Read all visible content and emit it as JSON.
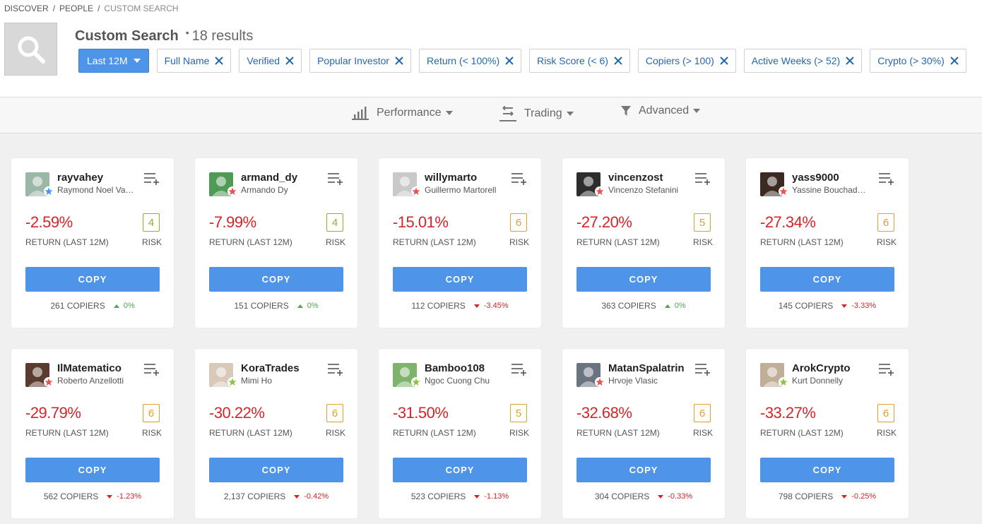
{
  "breadcrumb": {
    "items": [
      "DISCOVER",
      "PEOPLE"
    ],
    "current": "CUSTOM SEARCH"
  },
  "page": {
    "title": "Custom Search",
    "results": "18 results"
  },
  "filters": {
    "period": "Last 12M",
    "chips": [
      "Full Name",
      "Verified",
      "Popular Investor",
      "Return (< 100%)",
      "Risk Score (< 6)",
      "Copiers (> 100)",
      "Active Weeks (> 52)",
      "Crypto (> 30%)"
    ]
  },
  "toolbar": {
    "performance": "Performance",
    "trading": "Trading",
    "advanced": "Advanced"
  },
  "colors": {
    "accent": "#4e95ea",
    "negative": "#d8232a",
    "positive": "#4aa84f",
    "risk_border": "#c6b534"
  },
  "labels": {
    "return": "RETURN (LAST 12M)",
    "risk": "RISK",
    "copy": "COPY"
  },
  "traders": [
    {
      "username": "rayvahey",
      "fullname": "Raymond Noel Vahey",
      "return": "-2.59%",
      "risk": "4",
      "copiers": "261 COPIERS",
      "change": "0%",
      "trend": "up",
      "badge": "blue",
      "avatar_bg": "#9bb7a6",
      "risk_color": "#8fb321"
    },
    {
      "username": "armand_dy",
      "fullname": "Armando Dy",
      "return": "-7.99%",
      "risk": "4",
      "copiers": "151 COPIERS",
      "change": "0%",
      "trend": "up",
      "badge": "red",
      "avatar_bg": "#4f9a54",
      "risk_color": "#8fb321"
    },
    {
      "username": "willymarto",
      "fullname": "Guillermo Martorell",
      "return": "-15.01%",
      "risk": "6",
      "copiers": "112 COPIERS",
      "change": "-3.45%",
      "trend": "down",
      "badge": "red",
      "avatar_bg": "#c9c9c9",
      "risk_color": "#e3a02c"
    },
    {
      "username": "vincenzost",
      "fullname": "Vincenzo Stefanini",
      "return": "-27.20%",
      "risk": "5",
      "copiers": "363 COPIERS",
      "change": "0%",
      "trend": "up",
      "badge": "red",
      "avatar_bg": "#2d2d2d",
      "risk_color": "#d2a72b"
    },
    {
      "username": "yass9000",
      "fullname": "Yassine Bouchadekh",
      "return": "-27.34%",
      "risk": "6",
      "copiers": "145 COPIERS",
      "change": "-3.33%",
      "trend": "down",
      "badge": "red",
      "avatar_bg": "#3a2a22",
      "risk_color": "#e3a02c"
    },
    {
      "username": "IlMatematico",
      "fullname": "Roberto Anzellotti",
      "return": "-29.79%",
      "risk": "6",
      "copiers": "562 COPIERS",
      "change": "-1.23%",
      "trend": "down",
      "badge": "red",
      "avatar_bg": "#5b3b2e",
      "risk_color": "#e3a02c"
    },
    {
      "username": "KoraTrades",
      "fullname": "Mimi Ho",
      "return": "-30.22%",
      "risk": "6",
      "copiers": "2,137 COPIERS",
      "change": "-0.42%",
      "trend": "down",
      "badge": "green",
      "avatar_bg": "#d8c9b8",
      "risk_color": "#e3a02c"
    },
    {
      "username": "Bamboo108",
      "fullname": "Ngoc Cuong Chu",
      "return": "-31.50%",
      "risk": "5",
      "copiers": "523 COPIERS",
      "change": "-1.13%",
      "trend": "down",
      "badge": "green",
      "avatar_bg": "#7fb36b",
      "risk_color": "#d2a72b"
    },
    {
      "username": "MatanSpalatrin",
      "fullname": "Hrvoje Vlasic",
      "return": "-32.68%",
      "risk": "6",
      "copiers": "304 COPIERS",
      "change": "-0.33%",
      "trend": "down",
      "badge": "red",
      "avatar_bg": "#6a7480",
      "risk_color": "#e3a02c"
    },
    {
      "username": "ArokCrypto",
      "fullname": "Kurt Donnelly",
      "return": "-33.27%",
      "risk": "6",
      "copiers": "798 COPIERS",
      "change": "-0.25%",
      "trend": "down",
      "badge": "green",
      "avatar_bg": "#bfae98",
      "risk_color": "#e3a02c"
    }
  ]
}
